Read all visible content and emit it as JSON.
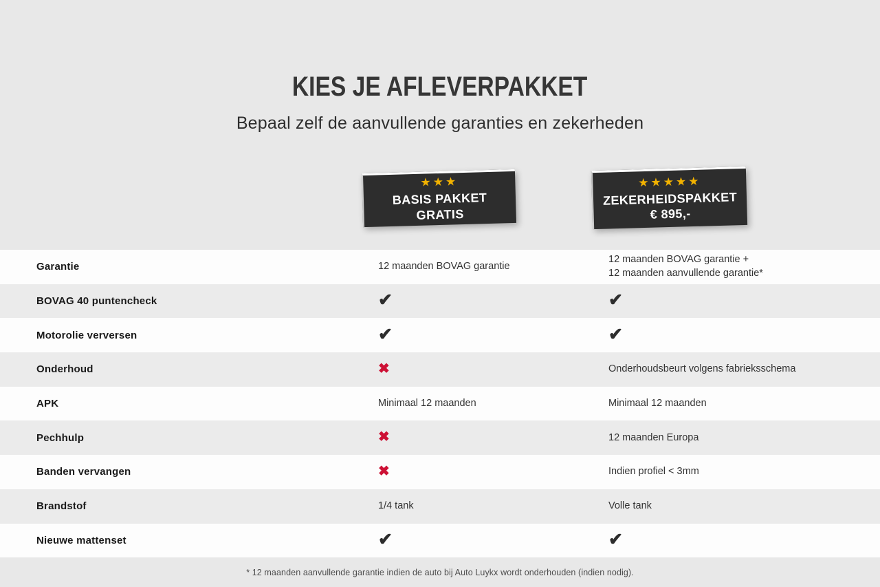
{
  "page": {
    "title": "KIES JE AFLEVERPAKKET",
    "subtitle": "Bepaal zelf de aanvullende garanties en zekerheden",
    "footnote": "* 12 maanden aanvullende garantie indien de auto bij Auto Luykx wordt onderhouden (indien nodig)."
  },
  "packages": [
    {
      "id": "basis",
      "stars": 3,
      "line1": "BASIS PAKKET",
      "line2": "GRATIS"
    },
    {
      "id": "zekerheid",
      "stars": 5,
      "line1": "ZEKERHEIDSPAKKET",
      "line2": "€ 895,-"
    }
  ],
  "icons": {
    "check": "✔",
    "cross": "✖",
    "star": "★"
  },
  "colors": {
    "page_background": "#e8e8e8",
    "row_white": "#fdfdfd",
    "row_stripe": "#ebebeb",
    "badge_background": "#2d2d2d",
    "star_gold": "#f2b200",
    "check_dark": "#2d2d2d",
    "cross_red": "#cd1135"
  },
  "table": {
    "rows": [
      {
        "label": "Garantie",
        "basis": {
          "type": "text",
          "text": "12 maanden BOVAG garantie"
        },
        "zekerheid": {
          "type": "text",
          "text": "12 maanden BOVAG garantie +\n12 maanden aanvullende garantie*"
        }
      },
      {
        "label": "BOVAG 40 puntencheck",
        "basis": {
          "type": "check"
        },
        "zekerheid": {
          "type": "check"
        }
      },
      {
        "label": "Motorolie verversen",
        "basis": {
          "type": "check"
        },
        "zekerheid": {
          "type": "check"
        }
      },
      {
        "label": "Onderhoud",
        "basis": {
          "type": "cross"
        },
        "zekerheid": {
          "type": "text",
          "text": "Onderhoudsbeurt volgens fabrieksschema"
        }
      },
      {
        "label": "APK",
        "basis": {
          "type": "text",
          "text": "Minimaal 12 maanden"
        },
        "zekerheid": {
          "type": "text",
          "text": "Minimaal 12 maanden"
        }
      },
      {
        "label": "Pechhulp",
        "basis": {
          "type": "cross"
        },
        "zekerheid": {
          "type": "text",
          "text": "12 maanden Europa"
        }
      },
      {
        "label": "Banden vervangen",
        "basis": {
          "type": "cross"
        },
        "zekerheid": {
          "type": "text",
          "text": "Indien profiel < 3mm"
        }
      },
      {
        "label": "Brandstof",
        "basis": {
          "type": "text",
          "text": "1/4 tank"
        },
        "zekerheid": {
          "type": "text",
          "text": "Volle tank"
        }
      },
      {
        "label": "Nieuwe mattenset",
        "basis": {
          "type": "check"
        },
        "zekerheid": {
          "type": "check"
        }
      }
    ]
  }
}
